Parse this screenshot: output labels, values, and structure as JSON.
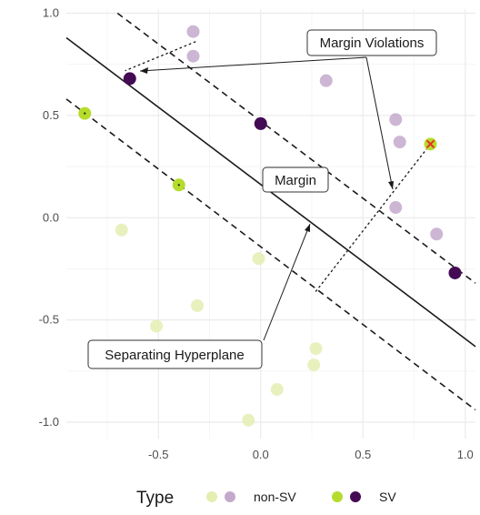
{
  "chart_data": {
    "type": "scatter",
    "title": "",
    "xlabel": "",
    "ylabel": "",
    "xlim": [
      -0.95,
      1.05
    ],
    "ylim": [
      -1.08,
      1.02
    ],
    "x_ticks": [
      {
        "value": -0.5,
        "label": "-0.5"
      },
      {
        "value": 0.0,
        "label": "0.0"
      },
      {
        "value": 0.5,
        "label": "0.5"
      },
      {
        "value": 1.0,
        "label": "1.0"
      }
    ],
    "y_ticks": [
      {
        "value": 1.0,
        "label": "1.0"
      },
      {
        "value": 0.5,
        "label": "0.5"
      },
      {
        "value": 0.0,
        "label": "0.0"
      },
      {
        "value": -0.5,
        "label": "-0.5"
      },
      {
        "value": -1.0,
        "label": "-1.0"
      }
    ],
    "grid": true,
    "colors": {
      "green_non_sv": "#e4eeb1",
      "purple_non_sv": "#c4a9cc",
      "green_sv": "#b5dc2c",
      "purple_sv": "#440b54",
      "violation_mark": "#e8302b",
      "line": "#1a1a1a"
    },
    "points": [
      {
        "x": -0.33,
        "y": 0.91,
        "class": "purple",
        "type": "non-SV"
      },
      {
        "x": -0.33,
        "y": 0.79,
        "class": "purple",
        "type": "non-SV"
      },
      {
        "x": 0.32,
        "y": 0.67,
        "class": "purple",
        "type": "non-SV"
      },
      {
        "x": 0.66,
        "y": 0.48,
        "class": "purple",
        "type": "non-SV"
      },
      {
        "x": 0.68,
        "y": 0.37,
        "class": "purple",
        "type": "non-SV"
      },
      {
        "x": 0.66,
        "y": 0.05,
        "class": "purple",
        "type": "non-SV"
      },
      {
        "x": 0.86,
        "y": -0.08,
        "class": "purple",
        "type": "non-SV"
      },
      {
        "x": -0.68,
        "y": -0.06,
        "class": "green",
        "type": "non-SV"
      },
      {
        "x": -0.01,
        "y": -0.2,
        "class": "green",
        "type": "non-SV"
      },
      {
        "x": -0.31,
        "y": -0.43,
        "class": "green",
        "type": "non-SV"
      },
      {
        "x": -0.51,
        "y": -0.53,
        "class": "green",
        "type": "non-SV"
      },
      {
        "x": 0.27,
        "y": -0.64,
        "class": "green",
        "type": "non-SV"
      },
      {
        "x": 0.26,
        "y": -0.72,
        "class": "green",
        "type": "non-SV"
      },
      {
        "x": 0.08,
        "y": -0.84,
        "class": "green",
        "type": "non-SV"
      },
      {
        "x": -0.06,
        "y": -0.99,
        "class": "green",
        "type": "non-SV"
      },
      {
        "x": -0.64,
        "y": 0.68,
        "class": "purple",
        "type": "SV"
      },
      {
        "x": 0.0,
        "y": 0.46,
        "class": "purple",
        "type": "SV"
      },
      {
        "x": 0.95,
        "y": -0.27,
        "class": "purple",
        "type": "SV"
      },
      {
        "x": -0.86,
        "y": 0.51,
        "class": "green",
        "type": "SV"
      },
      {
        "x": -0.4,
        "y": 0.16,
        "class": "green",
        "type": "SV"
      },
      {
        "x": 0.83,
        "y": 0.36,
        "class": "green",
        "type": "SV",
        "violation": true
      }
    ],
    "lines": [
      {
        "name": "separating-hyperplane",
        "style": "solid",
        "from": [
          -0.95,
          0.88
        ],
        "to": [
          1.05,
          -0.63
        ]
      },
      {
        "name": "upper-margin",
        "style": "dashed",
        "from": [
          -0.7,
          1.0
        ],
        "to": [
          1.05,
          -0.32
        ]
      },
      {
        "name": "lower-margin",
        "style": "dashed",
        "from": [
          -0.95,
          0.58
        ],
        "to": [
          1.05,
          -0.94
        ]
      }
    ],
    "annotations": {
      "margin_violations": {
        "text": "Margin Violations",
        "x": 0.6,
        "y": 0.86
      },
      "margin": {
        "text": "Margin",
        "x": 0.16,
        "y": 0.19
      },
      "separating_hyperplane": {
        "text": "Separating Hyperplane",
        "x": -0.49,
        "y": -0.67
      }
    },
    "legend": {
      "title": "Type",
      "position": "bottom",
      "entries": [
        {
          "label": "non-SV",
          "colors": [
            "#e4eeb1",
            "#c4a9cc"
          ]
        },
        {
          "label": "SV",
          "colors": [
            "#b5dc2c",
            "#440b54"
          ]
        }
      ]
    }
  }
}
